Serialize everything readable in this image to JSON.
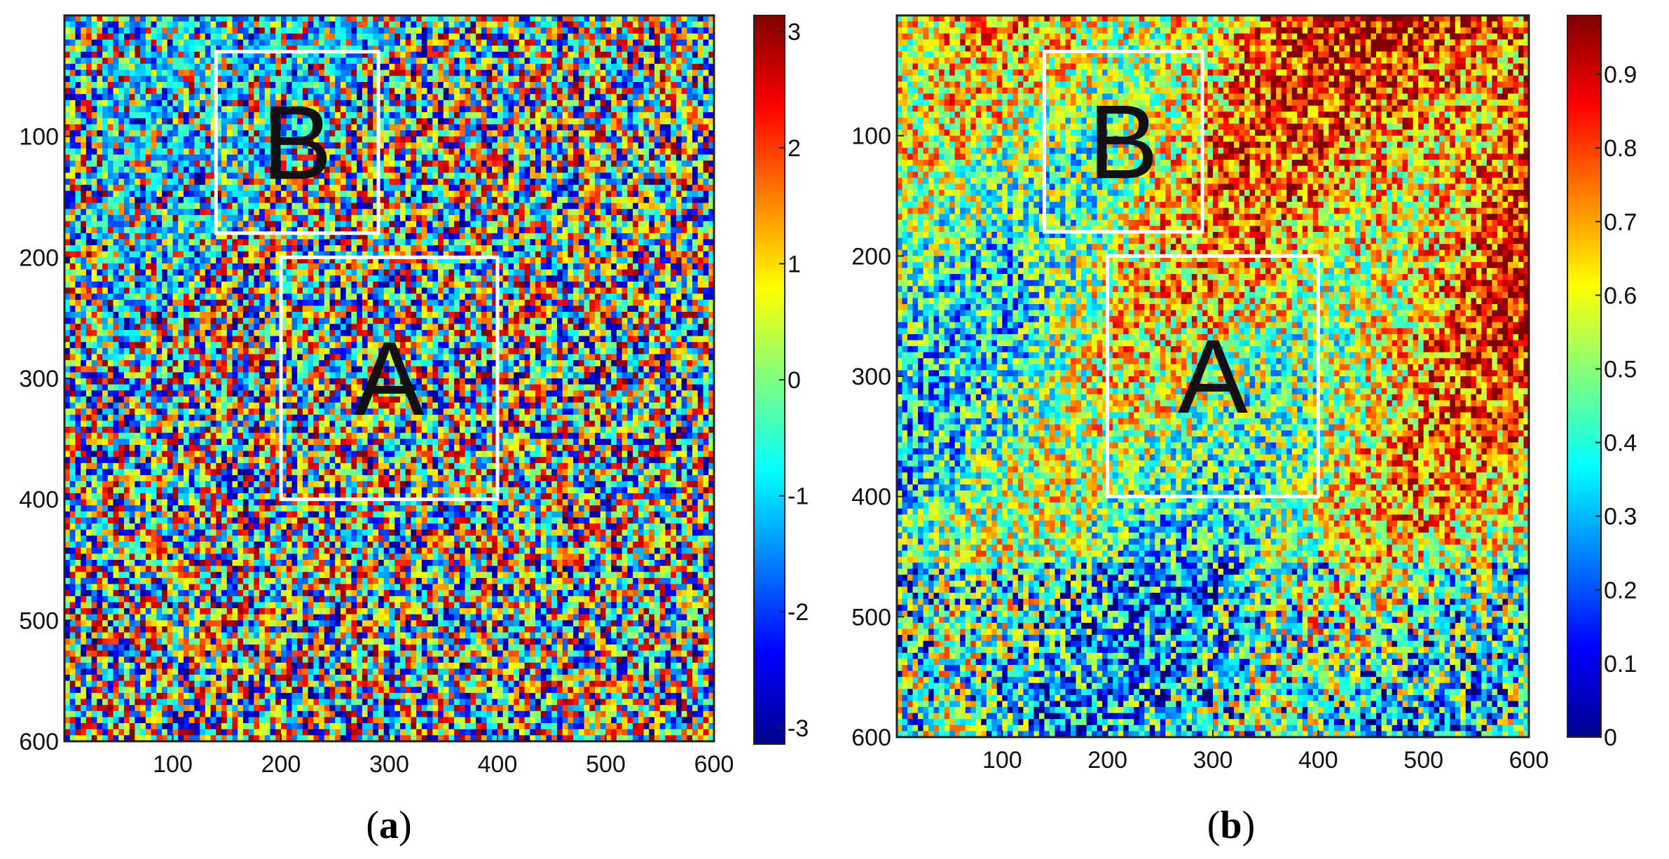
{
  "chart_data": [
    {
      "type": "heatmap",
      "panel_label": "(a)",
      "panel_letter": "a",
      "x_ticks": [
        100,
        200,
        300,
        400,
        500,
        600
      ],
      "y_ticks": [
        100,
        200,
        300,
        400,
        500,
        600
      ],
      "xlim": [
        0,
        600
      ],
      "ylim": [
        0,
        600
      ],
      "colorbar": {
        "min": -3.14,
        "max": 3.14,
        "ticks": [
          -3,
          -2,
          -1,
          0,
          1,
          2,
          3
        ],
        "colormap": "jet"
      },
      "regions": [
        {
          "label": "B",
          "x0": 140,
          "x1": 290,
          "y0": 30,
          "y1": 180
        },
        {
          "label": "A",
          "x0": 200,
          "x1": 400,
          "y0": 200,
          "y1": 400
        }
      ]
    },
    {
      "type": "heatmap",
      "panel_label": "(b)",
      "panel_letter": "b",
      "x_ticks": [
        100,
        200,
        300,
        400,
        500,
        600
      ],
      "y_ticks": [
        100,
        200,
        300,
        400,
        500,
        600
      ],
      "xlim": [
        0,
        600
      ],
      "ylim": [
        0,
        600
      ],
      "colorbar": {
        "min": 0,
        "max": 0.98,
        "ticks": [
          0,
          0.1,
          0.2,
          0.3,
          0.4,
          0.5,
          0.6,
          0.7,
          0.8,
          0.9
        ],
        "colormap": "jet"
      },
      "regions": [
        {
          "label": "B",
          "x0": 140,
          "x1": 290,
          "y0": 30,
          "y1": 180
        },
        {
          "label": "A",
          "x0": 200,
          "x1": 400,
          "y0": 200,
          "y1": 400
        }
      ]
    }
  ]
}
